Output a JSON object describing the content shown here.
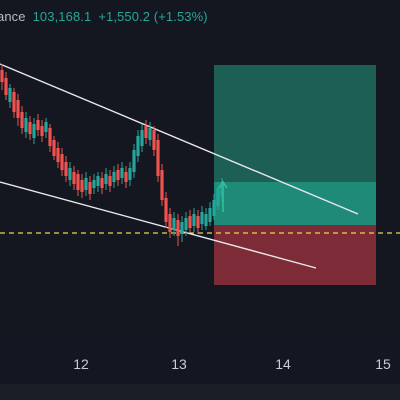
{
  "header": {
    "ticker_fragment": "ance",
    "last_price": "103,168.1",
    "change": "+1,550.2 (+1.53%)"
  },
  "x_axis": {
    "ticks": [
      "12",
      "13",
      "14",
      "15"
    ]
  },
  "colors": {
    "background": "#131722",
    "up": "#26a69a",
    "down": "#ef5350",
    "profit_zone": "#1e6b5e",
    "loss_zone": "#7a2a36",
    "trendline": "#e8e8ee",
    "price_line": "#e6d84a"
  }
}
